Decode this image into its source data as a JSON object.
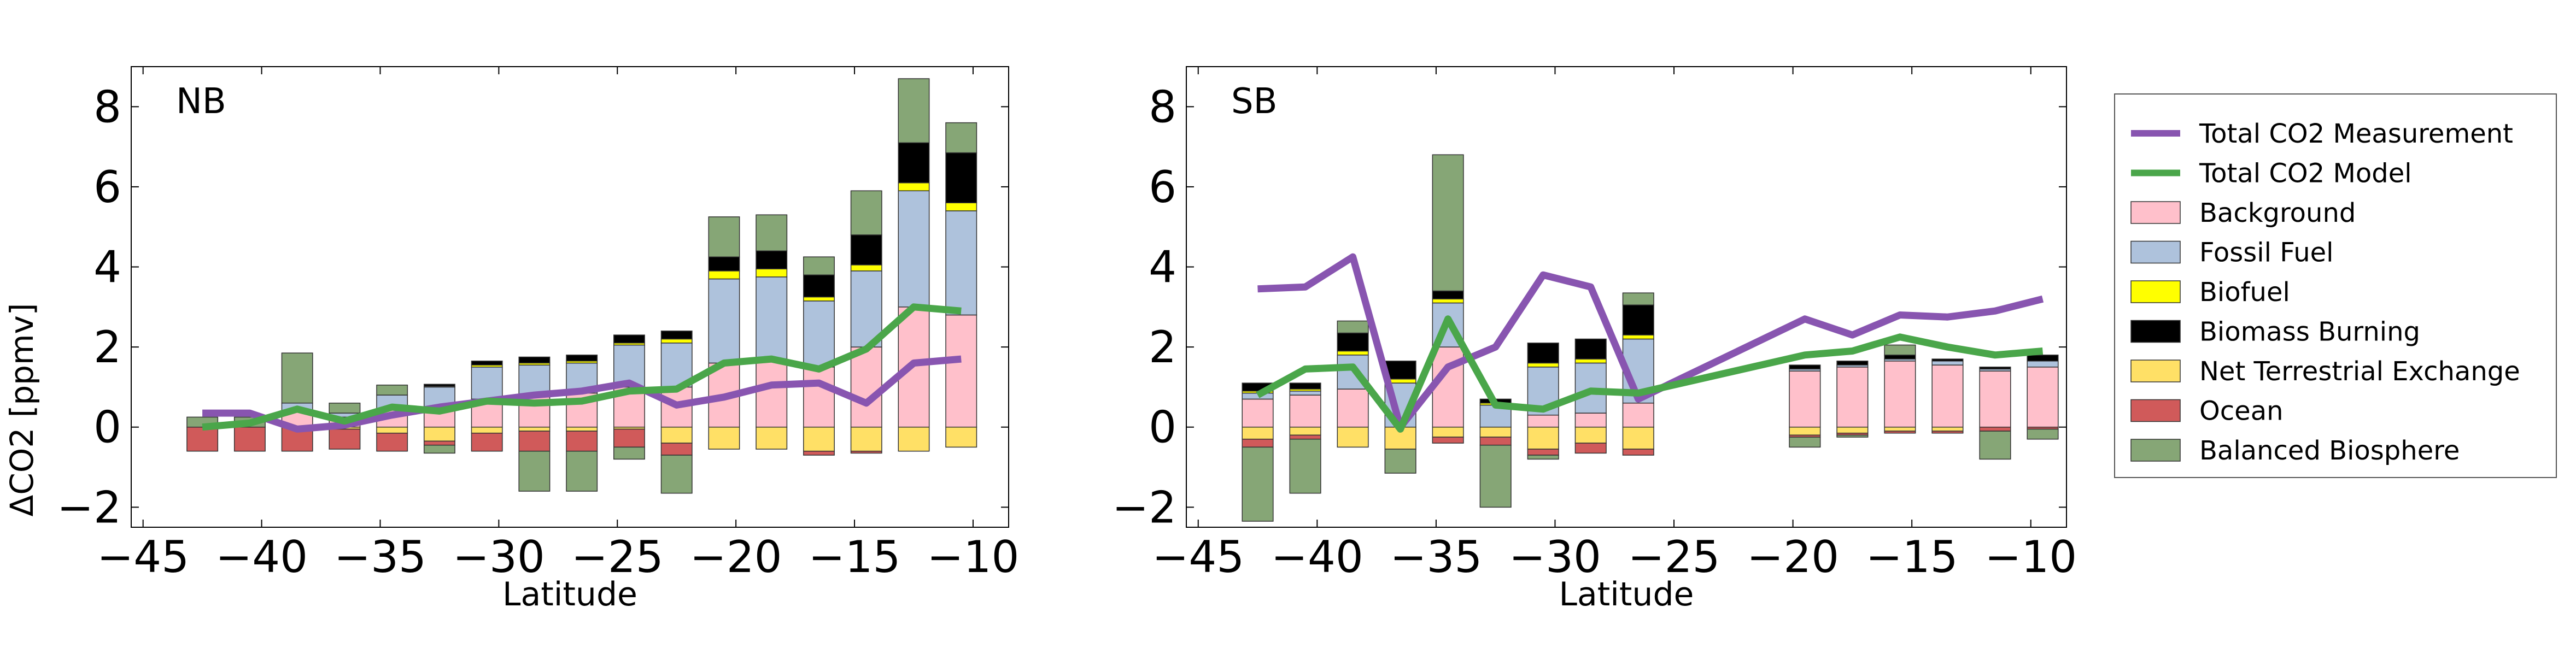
{
  "figure": {
    "ylabel": "ΔCO2 [ppmv]",
    "xlabel": "Latitude",
    "x_ticks": [
      -45,
      -40,
      -35,
      -30,
      -25,
      -20,
      -15,
      -10
    ],
    "y_ticks": [
      -2,
      0,
      2,
      4,
      6,
      8
    ],
    "xlim": [
      -45.5,
      -8.5
    ],
    "ylim": [
      -2.5,
      9.0
    ],
    "colors": {
      "Background": "#ffc0cb",
      "Fossil Fuel": "#aec2dc",
      "Biofuel": "#ffff00",
      "Biomass Burning": "#000000",
      "Net Terrestrial Exchange": "#ffe066",
      "Ocean": "#d05a5a",
      "Balanced Biosphere": "#86a676",
      "Total CO2 Measurement": "#8855b0",
      "Total CO2 Model": "#4aa64a"
    }
  },
  "legend": {
    "placement": "right",
    "items": [
      {
        "label": "Total CO2 Measurement",
        "kind": "line",
        "color": "#8855b0"
      },
      {
        "label": "Total CO2 Model",
        "kind": "line",
        "color": "#4aa64a"
      },
      {
        "label": "Background",
        "kind": "patch",
        "color": "#ffc0cb"
      },
      {
        "label": "Fossil Fuel",
        "kind": "patch",
        "color": "#aec2dc"
      },
      {
        "label": "Biofuel",
        "kind": "patch",
        "color": "#ffff00"
      },
      {
        "label": "Biomass Burning",
        "kind": "patch",
        "color": "#000000"
      },
      {
        "label": "Net Terrestrial Exchange",
        "kind": "patch",
        "color": "#ffe066"
      },
      {
        "label": "Ocean",
        "kind": "patch",
        "color": "#d05a5a"
      },
      {
        "label": "Balanced Biosphere",
        "kind": "patch",
        "color": "#86a676"
      }
    ]
  },
  "chart_data": [
    {
      "type": "bar",
      "title": "NB",
      "xlabel": "Latitude",
      "ylabel": "ΔCO2 [ppmv]",
      "xlim": [
        -45.5,
        -8.5
      ],
      "ylim": [
        -2.5,
        9.0
      ],
      "grid": false,
      "stacked": true,
      "bar_width": 1.3,
      "x": [
        -42.5,
        -40.5,
        -38.5,
        -36.5,
        -34.5,
        -32.5,
        -30.5,
        -28.5,
        -26.5,
        -24.5,
        -22.5,
        -20.5,
        -18.5,
        -16.5,
        -14.5,
        -12.5,
        -10.5
      ],
      "bar_series": [
        {
          "name": "Background",
          "values": [
            0.0,
            0.0,
            0.4,
            0.25,
            0.45,
            0.5,
            0.7,
            0.75,
            0.85,
            1.0,
            1.0,
            1.6,
            1.7,
            1.5,
            2.0,
            3.0,
            2.8
          ]
        },
        {
          "name": "Fossil Fuel",
          "values": [
            0.0,
            0.0,
            0.2,
            0.1,
            0.35,
            0.5,
            0.8,
            0.8,
            0.75,
            1.05,
            1.1,
            2.1,
            2.05,
            1.65,
            1.9,
            2.9,
            2.6
          ]
        },
        {
          "name": "Biofuel",
          "values": [
            0.0,
            0.0,
            0.0,
            0.0,
            0.0,
            0.02,
            0.05,
            0.05,
            0.05,
            0.05,
            0.1,
            0.2,
            0.2,
            0.1,
            0.15,
            0.2,
            0.2
          ]
        },
        {
          "name": "Biomass Burning",
          "values": [
            0.0,
            0.0,
            0.0,
            0.0,
            0.0,
            0.05,
            0.1,
            0.15,
            0.15,
            0.2,
            0.2,
            0.35,
            0.45,
            0.55,
            0.75,
            1.0,
            1.25
          ]
        },
        {
          "name": "Net Terrestrial Exchange",
          "values": [
            0.0,
            0.0,
            0.0,
            -0.05,
            -0.15,
            -0.35,
            -0.15,
            -0.1,
            -0.1,
            -0.05,
            -0.4,
            -0.55,
            -0.55,
            -0.6,
            -0.6,
            -0.6,
            -0.5
          ]
        },
        {
          "name": "Ocean",
          "values": [
            -0.6,
            -0.6,
            -0.6,
            -0.5,
            -0.45,
            -0.1,
            -0.45,
            -0.5,
            -0.5,
            -0.45,
            -0.3,
            0.0,
            0.0,
            -0.1,
            -0.05,
            0.0,
            0.0
          ]
        },
        {
          "name": "Balanced Biosphere",
          "values": [
            0.25,
            0.25,
            1.25,
            0.25,
            0.25,
            -0.2,
            0.0,
            -1.0,
            -1.0,
            -0.3,
            -0.95,
            1.0,
            0.9,
            0.45,
            1.1,
            1.6,
            0.75
          ]
        }
      ],
      "line_series": [
        {
          "name": "Total CO2 Measurement",
          "x": [
            -42.5,
            -40.5,
            -38.5,
            -36.5,
            -34.5,
            -32.5,
            -30.5,
            -28.5,
            -26.5,
            -24.5,
            -22.5,
            -20.5,
            -18.5,
            -16.5,
            -14.5,
            -12.5,
            -10.5
          ],
          "values": [
            0.35,
            0.35,
            -0.05,
            0.05,
            0.3,
            0.5,
            0.65,
            0.8,
            0.9,
            1.1,
            0.55,
            0.75,
            1.05,
            1.1,
            0.6,
            1.6,
            1.7
          ]
        },
        {
          "name": "Total CO2 Model",
          "x": [
            -42.5,
            -40.5,
            -38.5,
            -36.5,
            -34.5,
            -32.5,
            -30.5,
            -28.5,
            -26.5,
            -24.5,
            -22.5,
            -20.5,
            -18.5,
            -16.5,
            -14.5,
            -12.5,
            -10.5
          ],
          "values": [
            0.0,
            0.1,
            0.45,
            0.15,
            0.5,
            0.4,
            0.65,
            0.6,
            0.65,
            0.9,
            0.95,
            1.6,
            1.7,
            1.45,
            1.95,
            3.0,
            2.9
          ]
        }
      ]
    },
    {
      "type": "bar",
      "title": "SB",
      "xlabel": "Latitude",
      "ylabel": "",
      "xlim": [
        -45.5,
        -8.5
      ],
      "ylim": [
        -2.5,
        9.0
      ],
      "grid": false,
      "stacked": true,
      "bar_width": 1.3,
      "x": [
        -42.5,
        -40.5,
        -38.5,
        -36.5,
        -34.5,
        -32.5,
        -30.5,
        -28.5,
        -26.5,
        -19.5,
        -17.5,
        -15.5,
        -13.5,
        -11.5,
        -9.5
      ],
      "bar_series": [
        {
          "name": "Background",
          "values": [
            0.7,
            0.8,
            0.95,
            0.0,
            2.0,
            0.0,
            0.3,
            0.35,
            0.6,
            1.4,
            1.5,
            1.65,
            1.55,
            1.4,
            1.5
          ]
        },
        {
          "name": "Fossil Fuel",
          "values": [
            0.15,
            0.1,
            0.85,
            1.1,
            1.1,
            0.55,
            1.2,
            1.25,
            1.6,
            0.05,
            0.05,
            0.05,
            0.1,
            0.05,
            0.15
          ]
        },
        {
          "name": "Biofuel",
          "values": [
            0.05,
            0.05,
            0.1,
            0.1,
            0.1,
            0.05,
            0.1,
            0.1,
            0.1,
            0.0,
            0.0,
            0.0,
            0.0,
            0.0,
            0.0
          ]
        },
        {
          "name": "Biomass Burning",
          "values": [
            0.2,
            0.15,
            0.45,
            0.45,
            0.2,
            0.1,
            0.5,
            0.5,
            0.75,
            0.1,
            0.1,
            0.1,
            0.05,
            0.05,
            0.15
          ]
        },
        {
          "name": "Net Terrestrial Exchange",
          "values": [
            -0.3,
            -0.2,
            -0.5,
            -0.55,
            -0.25,
            -0.25,
            -0.55,
            -0.4,
            -0.55,
            -0.2,
            -0.15,
            -0.1,
            -0.1,
            0.0,
            0.0
          ]
        },
        {
          "name": "Ocean",
          "values": [
            -0.2,
            -0.1,
            0.0,
            0.0,
            -0.15,
            -0.2,
            -0.15,
            -0.25,
            -0.15,
            -0.05,
            -0.05,
            -0.05,
            -0.05,
            -0.1,
            -0.05
          ]
        },
        {
          "name": "Balanced Biosphere",
          "values": [
            -1.85,
            -1.35,
            0.3,
            -0.6,
            3.4,
            -1.55,
            -0.1,
            0.0,
            0.3,
            -0.25,
            -0.05,
            0.25,
            0.0,
            -0.7,
            -0.25
          ]
        }
      ],
      "line_series": [
        {
          "name": "Total CO2 Measurement",
          "x": [
            -42.5,
            -40.5,
            -38.5,
            -36.5,
            -34.5,
            -32.5,
            -30.5,
            -28.5,
            -26.5,
            -19.5,
            -17.5,
            -15.5,
            -13.5,
            -11.5,
            -9.5
          ],
          "values": [
            3.45,
            3.5,
            4.25,
            0.0,
            1.5,
            2.0,
            3.8,
            3.5,
            0.7,
            2.7,
            2.3,
            2.8,
            2.75,
            2.9,
            3.2
          ]
        },
        {
          "name": "Total CO2 Model",
          "x": [
            -42.5,
            -40.5,
            -38.5,
            -36.5,
            -34.5,
            -32.5,
            -30.5,
            -28.5,
            -26.5,
            -19.5,
            -17.5,
            -15.5,
            -13.5,
            -11.5,
            -9.5
          ],
          "values": [
            0.8,
            1.45,
            1.5,
            -0.05,
            2.7,
            0.55,
            0.45,
            0.9,
            0.85,
            1.8,
            1.9,
            2.25,
            2.0,
            1.8,
            1.9
          ]
        }
      ]
    }
  ]
}
